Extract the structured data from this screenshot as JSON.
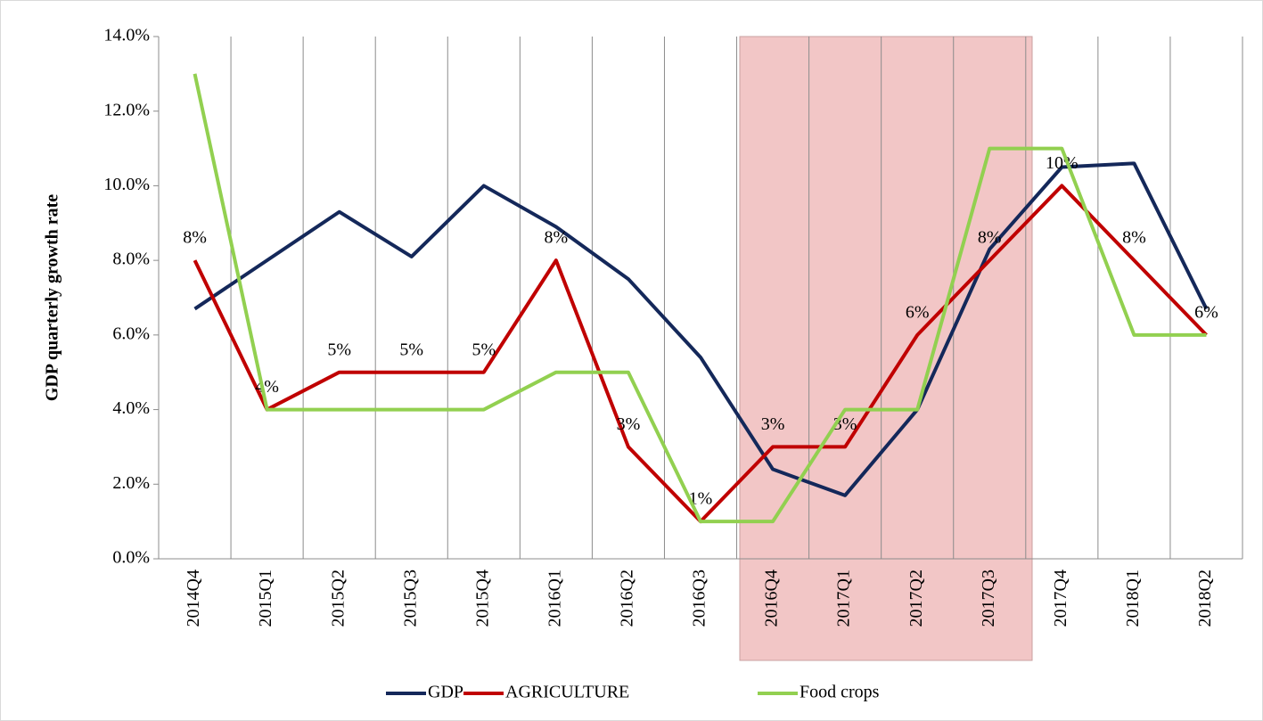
{
  "chart_data": {
    "type": "line",
    "y_axis_label": "GDP quarterly growth rate",
    "categories": [
      "2014Q4",
      "2015Q1",
      "2015Q2",
      "2015Q3",
      "2015Q4",
      "2016Q1",
      "2016Q2",
      "2016Q3",
      "2016Q4",
      "2017Q1",
      "2017Q2",
      "2017Q3",
      "2017Q4",
      "2018Q1",
      "2018Q2"
    ],
    "series": [
      {
        "name": "GDP",
        "color": "#14285a",
        "values": [
          6.7,
          8.0,
          9.3,
          8.1,
          10.0,
          8.9,
          7.5,
          5.4,
          2.4,
          1.7,
          4.0,
          8.3,
          10.5,
          10.6,
          6.7
        ]
      },
      {
        "name": "AGRICULTURE",
        "color": "#c00000",
        "values": [
          8,
          4,
          5,
          5,
          5,
          8,
          3,
          1,
          3,
          3,
          6,
          8,
          10,
          8,
          6
        ],
        "value_labels": [
          "8%",
          "4%",
          "5%",
          "5%",
          "5%",
          "8%",
          "3%",
          "1%",
          "3%",
          "3%",
          "6%",
          "8%",
          "10%",
          "8%",
          "6%"
        ]
      },
      {
        "name": "Food crops",
        "color": "#92d050",
        "values": [
          13,
          4,
          4,
          4,
          4,
          5,
          5,
          1,
          1,
          4,
          4,
          11,
          11,
          6,
          6
        ]
      }
    ],
    "ylim": [
      0,
      14
    ],
    "yticks": [
      {
        "value": 0,
        "label": "0.0%"
      },
      {
        "value": 2,
        "label": "2.0%"
      },
      {
        "value": 4,
        "label": "4.0%"
      },
      {
        "value": 6,
        "label": "6.0%"
      },
      {
        "value": 8,
        "label": "8.0%"
      },
      {
        "value": 10,
        "label": "10.0%"
      },
      {
        "value": 12,
        "label": "12.0%"
      },
      {
        "value": 14,
        "label": "14.0%"
      }
    ],
    "legend": "bottom"
  }
}
